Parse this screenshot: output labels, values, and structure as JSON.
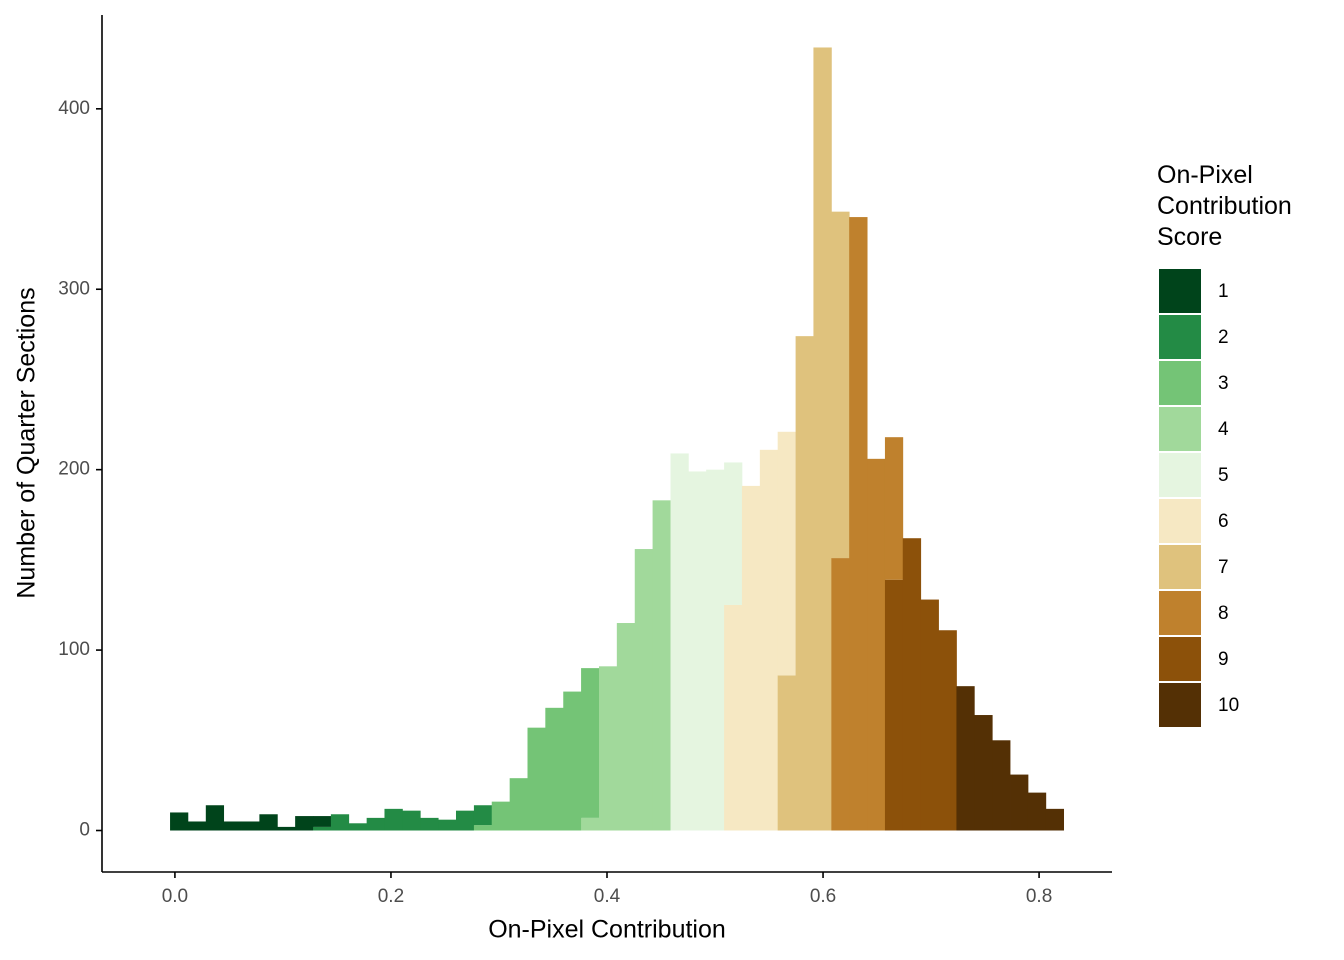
{
  "chart_data": {
    "type": "histogram",
    "x_label": "On-Pixel Contribution",
    "y_label": "Number of Quarter Sections",
    "legend_title": "On-Pixel\nContribution\nScore",
    "legend_position": "right",
    "stacked": true,
    "xlim": [
      -0.0675,
      0.8675
    ],
    "ylim": [
      -23,
      452
    ],
    "xticks": [
      {
        "value": 0,
        "label": "0.0"
      },
      0.2,
      0.4,
      0.6,
      0.8
    ],
    "yticks": [
      0,
      100,
      200,
      300,
      400
    ],
    "bins": [
      -0.0045,
      0.012,
      0.0286,
      0.0451,
      0.0617,
      0.0782,
      0.0948,
      0.1113,
      0.1279,
      0.1444,
      0.1609,
      0.1775,
      0.194,
      0.2106,
      0.2271,
      0.2437,
      0.2602,
      0.2768,
      0.2933,
      0.3099,
      0.3264,
      0.3429,
      0.3595,
      0.376,
      0.3926,
      0.4091,
      0.4257,
      0.4422,
      0.4588,
      0.4753,
      0.4918,
      0.5084,
      0.5249,
      0.5415,
      0.558,
      0.5746,
      0.5911,
      0.6077,
      0.6242,
      0.6408,
      0.6573,
      0.6738,
      0.6904,
      0.7069,
      0.7235,
      0.74,
      0.7566,
      0.7731,
      0.7897,
      0.8062,
      0.8227
    ],
    "series": [
      {
        "name": "1",
        "color": "#00441b",
        "values": [
          10,
          5,
          14,
          5,
          5,
          9,
          2,
          8,
          6,
          0,
          0,
          0,
          0,
          0,
          0,
          0,
          0,
          0,
          0,
          0,
          0,
          0,
          0,
          0,
          0,
          0,
          0,
          0,
          0,
          0,
          0,
          0,
          0,
          0,
          0,
          0,
          0,
          0,
          0,
          0,
          0,
          0,
          0,
          0,
          0,
          0,
          0,
          0,
          0,
          0
        ]
      },
      {
        "name": "2",
        "color": "#238b45",
        "values": [
          0,
          0,
          0,
          0,
          0,
          0,
          0,
          0,
          2,
          9,
          4,
          7,
          12,
          11,
          7,
          6,
          11,
          11,
          0,
          0,
          0,
          0,
          0,
          0,
          0,
          0,
          0,
          0,
          0,
          0,
          0,
          0,
          0,
          0,
          0,
          0,
          0,
          0,
          0,
          0,
          0,
          0,
          0,
          0,
          0,
          0,
          0,
          0,
          0,
          0
        ]
      },
      {
        "name": "3",
        "color": "#74c476",
        "values": [
          0,
          0,
          0,
          0,
          0,
          0,
          0,
          0,
          0,
          0,
          0,
          0,
          0,
          0,
          0,
          0,
          0,
          3,
          16,
          29,
          57,
          68,
          77,
          83,
          0,
          0,
          0,
          0,
          0,
          0,
          0,
          0,
          0,
          0,
          0,
          0,
          0,
          0,
          0,
          0,
          0,
          0,
          0,
          0,
          0,
          0,
          0,
          0,
          0,
          0
        ]
      },
      {
        "name": "4",
        "color": "#a1d99b",
        "values": [
          0,
          0,
          0,
          0,
          0,
          0,
          0,
          0,
          0,
          0,
          0,
          0,
          0,
          0,
          0,
          0,
          0,
          0,
          0,
          0,
          0,
          0,
          0,
          7,
          91,
          115,
          156,
          183,
          0,
          0,
          0,
          0,
          0,
          0,
          0,
          0,
          0,
          0,
          0,
          0,
          0,
          0,
          0,
          0,
          0,
          0,
          0,
          0,
          0,
          0
        ]
      },
      {
        "name": "5",
        "color": "#e5f5e0",
        "values": [
          0,
          0,
          0,
          0,
          0,
          0,
          0,
          0,
          0,
          0,
          0,
          0,
          0,
          0,
          0,
          0,
          0,
          0,
          0,
          0,
          0,
          0,
          0,
          0,
          0,
          0,
          0,
          0,
          209,
          199,
          200,
          79,
          0,
          0,
          0,
          0,
          0,
          0,
          0,
          0,
          0,
          0,
          0,
          0,
          0,
          0,
          0,
          0,
          0,
          0
        ]
      },
      {
        "name": "6",
        "color": "#f6e8c3",
        "values": [
          0,
          0,
          0,
          0,
          0,
          0,
          0,
          0,
          0,
          0,
          0,
          0,
          0,
          0,
          0,
          0,
          0,
          0,
          0,
          0,
          0,
          0,
          0,
          0,
          0,
          0,
          0,
          0,
          0,
          0,
          0,
          125,
          191,
          211,
          135,
          0,
          0,
          0,
          0,
          0,
          0,
          0,
          0,
          0,
          0,
          0,
          0,
          0,
          0,
          0
        ]
      },
      {
        "name": "7",
        "color": "#dfc27d",
        "values": [
          0,
          0,
          0,
          0,
          0,
          0,
          0,
          0,
          0,
          0,
          0,
          0,
          0,
          0,
          0,
          0,
          0,
          0,
          0,
          0,
          0,
          0,
          0,
          0,
          0,
          0,
          0,
          0,
          0,
          0,
          0,
          0,
          0,
          0,
          86,
          274,
          434,
          192,
          0,
          0,
          0,
          0,
          0,
          0,
          0,
          0,
          0,
          0,
          0,
          0
        ]
      },
      {
        "name": "8",
        "color": "#bf812d",
        "values": [
          0,
          0,
          0,
          0,
          0,
          0,
          0,
          0,
          0,
          0,
          0,
          0,
          0,
          0,
          0,
          0,
          0,
          0,
          0,
          0,
          0,
          0,
          0,
          0,
          0,
          0,
          0,
          0,
          0,
          0,
          0,
          0,
          0,
          0,
          0,
          0,
          0,
          151,
          340,
          206,
          79,
          0,
          0,
          0,
          0,
          0,
          0,
          0,
          0,
          0
        ]
      },
      {
        "name": "9",
        "color": "#8c510a",
        "values": [
          0,
          0,
          0,
          0,
          0,
          0,
          0,
          0,
          0,
          0,
          0,
          0,
          0,
          0,
          0,
          0,
          0,
          0,
          0,
          0,
          0,
          0,
          0,
          0,
          0,
          0,
          0,
          0,
          0,
          0,
          0,
          0,
          0,
          0,
          0,
          0,
          0,
          0,
          0,
          0,
          139,
          162,
          128,
          111,
          0,
          0,
          0,
          0,
          0,
          0
        ]
      },
      {
        "name": "10",
        "color": "#543005",
        "values": [
          0,
          0,
          0,
          0,
          0,
          0,
          0,
          0,
          0,
          0,
          0,
          0,
          0,
          0,
          0,
          0,
          0,
          0,
          0,
          0,
          0,
          0,
          0,
          0,
          0,
          0,
          0,
          0,
          0,
          0,
          0,
          0,
          0,
          0,
          0,
          0,
          0,
          0,
          0,
          0,
          0,
          0,
          0,
          0,
          80,
          64,
          50,
          31,
          21,
          12
        ]
      }
    ]
  }
}
